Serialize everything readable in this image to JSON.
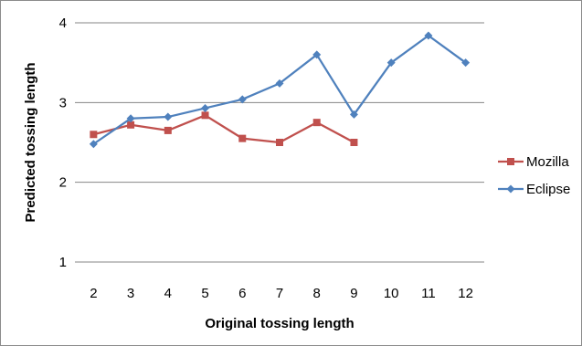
{
  "chart_data": {
    "type": "line",
    "title": "",
    "xlabel": "Original  tossing length",
    "ylabel": "Predicted  tossing  length",
    "categories": [
      "2",
      "3",
      "4",
      "5",
      "6",
      "7",
      "8",
      "9",
      "10",
      "11",
      "12"
    ],
    "ylim": [
      1,
      4
    ],
    "yticks": [
      "1",
      "2",
      "3",
      "4"
    ],
    "grid": "horizontal",
    "legend_position": "right",
    "series": [
      {
        "name": "Mozilla",
        "color": "#c0504d",
        "marker": "square",
        "values": [
          2.6,
          2.72,
          2.65,
          2.84,
          2.55,
          2.5,
          2.75,
          2.5,
          null,
          null,
          null
        ]
      },
      {
        "name": "Eclipse",
        "color": "#4f81bd",
        "marker": "diamond",
        "values": [
          2.48,
          2.8,
          2.82,
          2.93,
          3.04,
          3.24,
          3.6,
          2.85,
          3.5,
          3.84,
          3.5
        ]
      }
    ]
  }
}
